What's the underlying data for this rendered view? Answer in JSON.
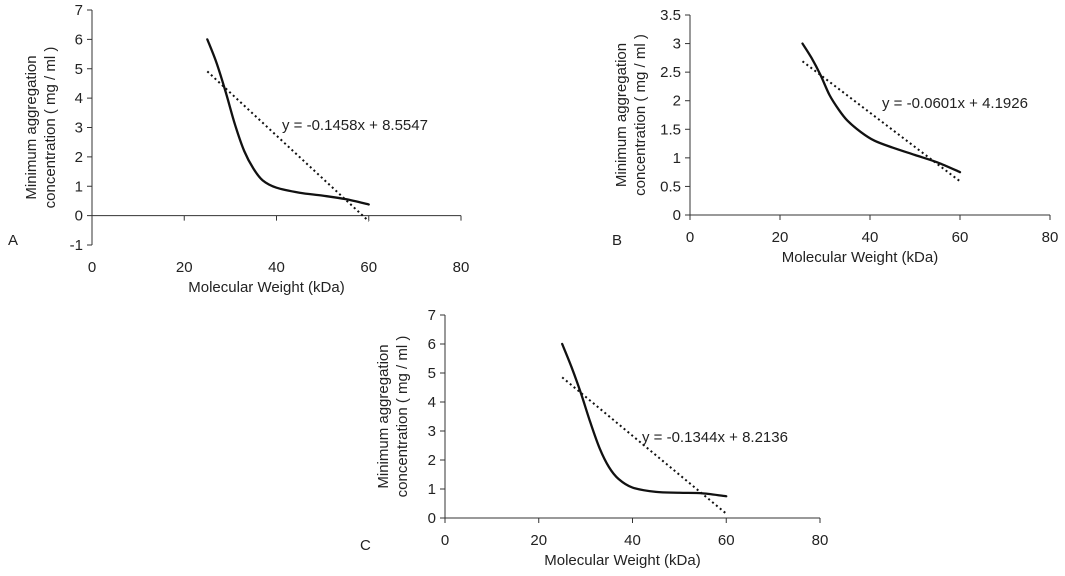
{
  "chart_data": [
    {
      "type": "line",
      "panel_label": "A",
      "xlabel": "Molecular Weight (kDa)",
      "ylabel_lines": [
        "Minimum aggregation",
        "concentration ( mg / ml )"
      ],
      "xlim": [
        0,
        80
      ],
      "ylim": [
        -1,
        7
      ],
      "x_ticks": [
        0,
        20,
        40,
        60,
        80
      ],
      "x_tick_labels": [
        "0",
        "20",
        "40",
        "60",
        "80"
      ],
      "y_ticks": [
        -1,
        0,
        1,
        2,
        3,
        4,
        5,
        6,
        7
      ],
      "y_tick_labels": [
        "-1",
        "0",
        "1",
        "2",
        "3",
        "4",
        "5",
        "6",
        "7"
      ],
      "grid": false,
      "series": [
        {
          "name": "observed",
          "style": "solid",
          "x": [
            25,
            27,
            29,
            31,
            33,
            35,
            37,
            40,
            45,
            50,
            55,
            60
          ],
          "y": [
            6.0,
            5.2,
            4.2,
            3.1,
            2.2,
            1.6,
            1.2,
            0.95,
            0.78,
            0.68,
            0.56,
            0.38
          ]
        },
        {
          "name": "linear trendline",
          "style": "dotted",
          "x": [
            25,
            60
          ],
          "y": [
            4.91,
            -0.19
          ]
        }
      ],
      "trendline_equation": "y = -0.1458x + 8.5547"
    },
    {
      "type": "line",
      "panel_label": "B",
      "xlabel": "Molecular Weight (kDa)",
      "ylabel_lines": [
        "Minimum aggregation",
        "concentration ( mg / ml )"
      ],
      "xlim": [
        0,
        80
      ],
      "ylim": [
        0,
        3.5
      ],
      "x_ticks": [
        0,
        20,
        40,
        60,
        80
      ],
      "x_tick_labels": [
        "0",
        "20",
        "40",
        "60",
        "80"
      ],
      "y_ticks": [
        0,
        0.5,
        1,
        1.5,
        2,
        2.5,
        3,
        3.5
      ],
      "y_tick_labels": [
        "0",
        "0.5",
        "1",
        "1.5",
        "2",
        "2.5",
        "3",
        "3.5"
      ],
      "grid": false,
      "series": [
        {
          "name": "observed",
          "style": "solid",
          "x": [
            25,
            27,
            29,
            31,
            33,
            35,
            38,
            41,
            45,
            50,
            55,
            60
          ],
          "y": [
            3.0,
            2.75,
            2.45,
            2.1,
            1.85,
            1.65,
            1.45,
            1.3,
            1.18,
            1.05,
            0.92,
            0.75
          ]
        },
        {
          "name": "linear trendline",
          "style": "dotted",
          "x": [
            25,
            60
          ],
          "y": [
            2.69,
            0.59
          ]
        }
      ],
      "trendline_equation": "y = -0.0601x + 4.1926"
    },
    {
      "type": "line",
      "panel_label": "C",
      "xlabel": "Molecular Weight (kDa)",
      "ylabel_lines": [
        "Minimum aggregation",
        "concentration ( mg / ml )"
      ],
      "xlim": [
        0,
        80
      ],
      "ylim": [
        0,
        7
      ],
      "x_ticks": [
        0,
        20,
        40,
        60,
        80
      ],
      "x_tick_labels": [
        "0",
        "20",
        "40",
        "60",
        "80"
      ],
      "y_ticks": [
        0,
        1,
        2,
        3,
        4,
        5,
        6,
        7
      ],
      "y_tick_labels": [
        "0",
        "1",
        "2",
        "3",
        "4",
        "5",
        "6",
        "7"
      ],
      "grid": false,
      "series": [
        {
          "name": "observed",
          "style": "solid",
          "x": [
            25,
            27,
            29,
            31,
            33,
            35,
            37,
            40,
            45,
            50,
            55,
            60
          ],
          "y": [
            6.0,
            5.2,
            4.3,
            3.3,
            2.4,
            1.75,
            1.35,
            1.05,
            0.9,
            0.87,
            0.85,
            0.75
          ]
        },
        {
          "name": "linear trendline",
          "style": "dotted",
          "x": [
            25,
            60
          ],
          "y": [
            4.85,
            0.15
          ]
        }
      ],
      "trendline_equation": "y = -0.1344x + 8.2136"
    }
  ]
}
